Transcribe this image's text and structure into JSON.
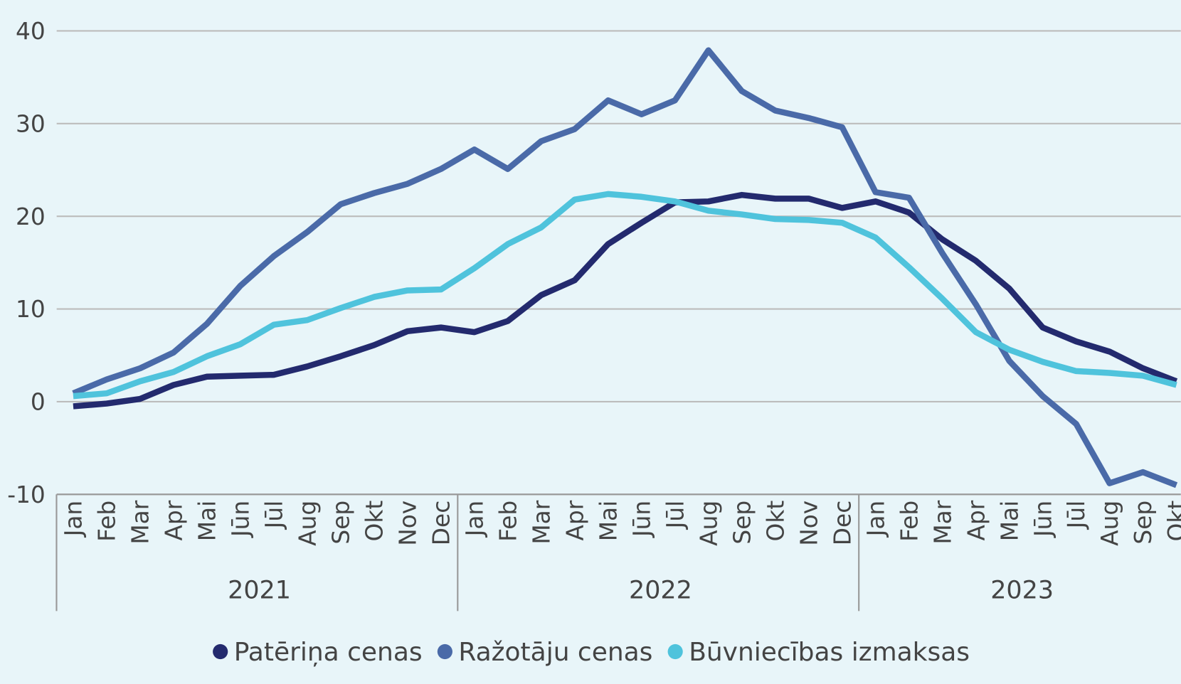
{
  "chart_data": {
    "type": "line",
    "category_groups": [
      {
        "label": "2021",
        "categories": [
          "Jan",
          "Feb",
          "Mar",
          "Apr",
          "Mai",
          "Jūn",
          "Jūl",
          "Aug",
          "Sep",
          "Okt",
          "Nov",
          "Dec"
        ]
      },
      {
        "label": "2022",
        "categories": [
          "Jan",
          "Feb",
          "Mar",
          "Apr",
          "Mai",
          "Jūn",
          "Jūl",
          "Aug",
          "Sep",
          "Okt",
          "Nov",
          "Dec"
        ]
      },
      {
        "label": "2023",
        "categories": [
          "Jan",
          "Feb",
          "Mar",
          "Apr",
          "Mai",
          "Jūn",
          "Jūl",
          "Aug",
          "Sep",
          "Okt"
        ]
      }
    ],
    "series": [
      {
        "name": "Patēriņa cenas",
        "color": "#232a6e",
        "values": [
          -0.5,
          -0.2,
          0.3,
          1.8,
          2.7,
          2.8,
          2.9,
          3.8,
          4.9,
          6.1,
          7.6,
          8.0,
          7.5,
          8.7,
          11.5,
          13.1,
          17.0,
          19.3,
          21.5,
          21.6,
          22.3,
          21.9,
          21.9,
          20.9,
          21.6,
          20.4,
          17.5,
          15.2,
          12.2,
          8.0,
          6.5,
          5.4,
          3.6,
          2.2
        ]
      },
      {
        "name": "Ražotāju cenas",
        "color": "#4a6aa8",
        "values": [
          0.9,
          2.4,
          3.6,
          5.3,
          8.4,
          12.5,
          15.7,
          18.3,
          21.3,
          22.5,
          23.5,
          25.1,
          27.2,
          25.1,
          28.1,
          29.4,
          32.5,
          31.0,
          32.5,
          37.9,
          33.5,
          31.4,
          30.6,
          29.6,
          22.6,
          22.0,
          16.0,
          10.5,
          4.4,
          0.6,
          -2.4,
          -8.8,
          -7.6,
          -9.0
        ]
      },
      {
        "name": "Būvniecības izmaksas",
        "color": "#4fc3dc",
        "values": [
          0.6,
          0.9,
          2.2,
          3.2,
          4.9,
          6.2,
          8.3,
          8.8,
          10.1,
          11.3,
          12.0,
          12.1,
          14.4,
          17.0,
          18.8,
          21.8,
          22.4,
          22.1,
          21.6,
          20.6,
          20.2,
          19.7,
          19.6,
          19.3,
          17.7,
          14.5,
          11.1,
          7.5,
          5.6,
          4.3,
          3.3,
          3.1,
          2.8,
          1.8
        ]
      }
    ],
    "ylim": [
      -10,
      40
    ],
    "yticks": [
      -10,
      0,
      10,
      20,
      30,
      40
    ],
    "grid": true,
    "legend": "bottom"
  }
}
